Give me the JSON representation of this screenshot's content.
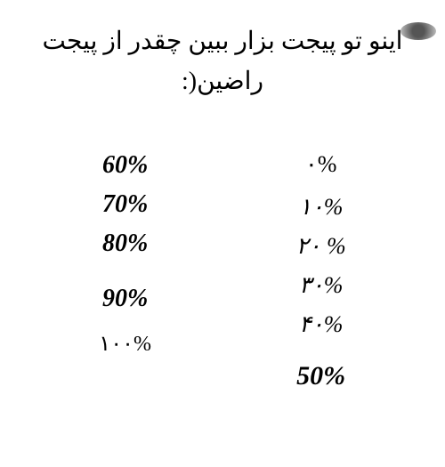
{
  "title": "اینو تو پیجت بزار ببین چقدر از پیجت راضین(:",
  "leftColumn": {
    "items": [
      "60%",
      "70%",
      "80%",
      "90%",
      "۱۰۰%"
    ]
  },
  "rightColumn": {
    "items": [
      "۰%",
      "۱۰%",
      "۲۰ %",
      "۳۰%",
      "۴۰%",
      "50%"
    ]
  },
  "colors": {
    "background": "#ffffff",
    "text": "#000000"
  },
  "typography": {
    "titleFontSize": 28,
    "leftColumnFontSize": 28,
    "rightColumnFontSize": 26,
    "emphasisFontSize": 30
  }
}
